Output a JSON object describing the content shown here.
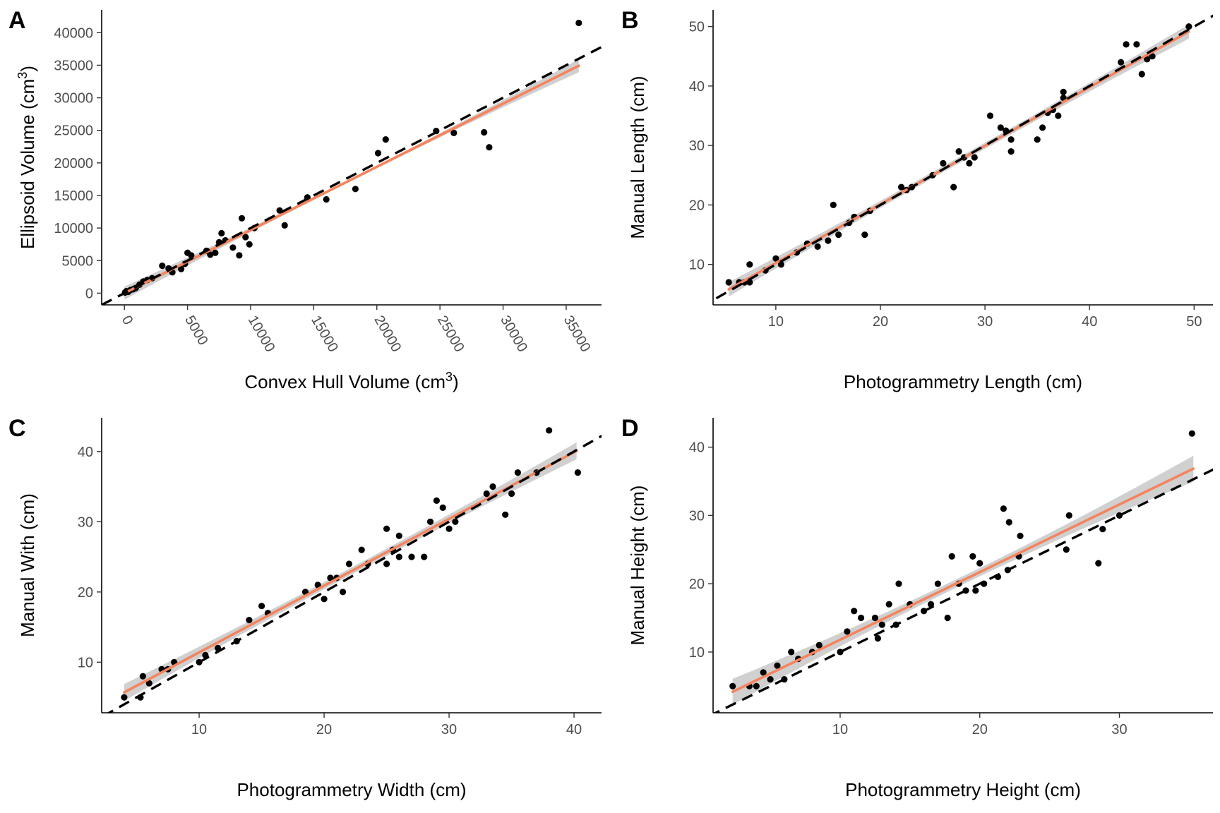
{
  "colors": {
    "fit_line": "#f4845f",
    "ci_band": "#c8c8c8",
    "points": "#000000",
    "identity_line": "#000000"
  },
  "chart_data": [
    {
      "panel": "A",
      "type": "scatter",
      "xlabel": "Convex Hull Volume (cm",
      "xlabel_sup": "3",
      "xlabel_end": ")",
      "ylabel": "Ellipsoid Volume (cm",
      "ylabel_sup": "3",
      "ylabel_end": ")",
      "xlim": [
        -1800,
        37800
      ],
      "ylim": [
        -1800,
        43500
      ],
      "xticks": [
        0,
        5000,
        10000,
        15000,
        20000,
        25000,
        30000,
        35000
      ],
      "yticks": [
        0,
        5000,
        10000,
        15000,
        20000,
        25000,
        30000,
        35000,
        40000
      ],
      "x_tick_rotation": 60,
      "identity_line": true,
      "fit": {
        "slope": 0.97,
        "intercept": 0,
        "x_range": [
          0,
          36000
        ],
        "ci": [
          200,
          1000
        ]
      },
      "points": [
        [
          50,
          100
        ],
        [
          150,
          300
        ],
        [
          300,
          200
        ],
        [
          500,
          500
        ],
        [
          700,
          600
        ],
        [
          900,
          800
        ],
        [
          1200,
          1300
        ],
        [
          1500,
          1800
        ],
        [
          1800,
          2000
        ],
        [
          2200,
          2300
        ],
        [
          3000,
          4200
        ],
        [
          3500,
          3800
        ],
        [
          3800,
          3200
        ],
        [
          4500,
          3700
        ],
        [
          4800,
          4500
        ],
        [
          5000,
          6200
        ],
        [
          5300,
          5800
        ],
        [
          6500,
          6500
        ],
        [
          6800,
          5900
        ],
        [
          7200,
          6200
        ],
        [
          7500,
          7800
        ],
        [
          7700,
          9200
        ],
        [
          8000,
          8100
        ],
        [
          8600,
          7000
        ],
        [
          9100,
          5800
        ],
        [
          9300,
          11500
        ],
        [
          9600,
          8600
        ],
        [
          9900,
          7500
        ],
        [
          10300,
          10000
        ],
        [
          12300,
          12700
        ],
        [
          12700,
          10400
        ],
        [
          14500,
          14700
        ],
        [
          16000,
          14400
        ],
        [
          18300,
          16000
        ],
        [
          20100,
          21500
        ],
        [
          20700,
          23600
        ],
        [
          24700,
          24900
        ],
        [
          26100,
          24600
        ],
        [
          28500,
          24700
        ],
        [
          28900,
          22400
        ],
        [
          36000,
          41500
        ]
      ]
    },
    {
      "panel": "B",
      "type": "scatter",
      "xlabel": "Photogrammetry Length (cm)",
      "ylabel": "Manual Length (cm)",
      "xlim": [
        4,
        51.8
      ],
      "ylim": [
        3.2,
        52.8
      ],
      "xticks": [
        10,
        20,
        30,
        40,
        50
      ],
      "yticks": [
        10,
        20,
        30,
        40,
        50
      ],
      "identity_line": true,
      "fit": {
        "slope": 0.985,
        "intercept": 0.4,
        "x_range": [
          5.5,
          49.5
        ],
        "ci": [
          0.5,
          1.2
        ]
      },
      "points": [
        [
          5.5,
          7
        ],
        [
          6.5,
          7
        ],
        [
          7,
          7
        ],
        [
          7.5,
          10
        ],
        [
          7.5,
          7
        ],
        [
          9,
          9
        ],
        [
          10,
          11
        ],
        [
          10.5,
          10
        ],
        [
          12,
          12
        ],
        [
          13,
          13.5
        ],
        [
          14,
          13
        ],
        [
          15,
          14
        ],
        [
          15.5,
          20
        ],
        [
          16,
          15
        ],
        [
          17,
          17
        ],
        [
          17.5,
          18
        ],
        [
          18.5,
          15
        ],
        [
          19,
          19
        ],
        [
          22,
          23
        ],
        [
          22.5,
          22.5
        ],
        [
          23,
          23
        ],
        [
          25,
          25
        ],
        [
          26,
          27
        ],
        [
          27,
          23
        ],
        [
          27.5,
          29
        ],
        [
          28,
          28
        ],
        [
          28.5,
          27
        ],
        [
          29,
          28
        ],
        [
          30.5,
          35
        ],
        [
          31.5,
          33
        ],
        [
          32,
          32.5
        ],
        [
          32.5,
          31
        ],
        [
          32.5,
          29
        ],
        [
          35,
          31
        ],
        [
          35.5,
          33
        ],
        [
          36,
          35.5
        ],
        [
          36.5,
          36
        ],
        [
          37,
          35
        ],
        [
          37.5,
          38
        ],
        [
          37.5,
          39
        ],
        [
          43,
          44
        ],
        [
          43.5,
          47
        ],
        [
          44.5,
          47
        ],
        [
          45,
          42
        ],
        [
          45.5,
          44.5
        ],
        [
          46,
          45
        ],
        [
          49.5,
          50
        ]
      ]
    },
    {
      "panel": "C",
      "type": "scatter",
      "xlabel": "Photogrammetry Width (cm)",
      "ylabel": "Manual With (cm)",
      "xlim": [
        2.2,
        42.2
      ],
      "ylim": [
        2.8,
        44.8
      ],
      "xticks": [
        10,
        20,
        30,
        40
      ],
      "yticks": [
        10,
        20,
        30,
        40
      ],
      "identity_line": true,
      "fit": {
        "slope": 0.95,
        "intercept": 1.9,
        "x_range": [
          4,
          40.2
        ],
        "ci": [
          0.5,
          1.2
        ]
      },
      "points": [
        [
          4,
          5
        ],
        [
          5.3,
          5
        ],
        [
          5.5,
          8
        ],
        [
          6,
          7
        ],
        [
          7,
          9
        ],
        [
          7.5,
          9
        ],
        [
          8,
          10
        ],
        [
          10,
          10
        ],
        [
          10.5,
          11
        ],
        [
          11.5,
          12
        ],
        [
          13,
          13
        ],
        [
          14,
          16
        ],
        [
          15,
          18
        ],
        [
          15.5,
          17
        ],
        [
          18.5,
          20
        ],
        [
          19.5,
          21
        ],
        [
          20,
          19
        ],
        [
          20.5,
          22
        ],
        [
          21,
          22
        ],
        [
          21.5,
          20
        ],
        [
          22,
          24
        ],
        [
          23,
          26
        ],
        [
          23.5,
          24
        ],
        [
          25,
          24
        ],
        [
          25,
          29
        ],
        [
          25.5,
          26
        ],
        [
          26,
          28
        ],
        [
          26,
          25
        ],
        [
          27,
          25
        ],
        [
          28,
          25
        ],
        [
          28.5,
          30
        ],
        [
          29,
          33
        ],
        [
          29.5,
          32
        ],
        [
          30,
          29
        ],
        [
          30.5,
          30
        ],
        [
          33,
          34
        ],
        [
          33.5,
          35
        ],
        [
          34.5,
          31
        ],
        [
          35,
          34
        ],
        [
          35.5,
          37
        ],
        [
          37,
          37
        ],
        [
          38,
          43
        ],
        [
          40.3,
          37
        ]
      ]
    },
    {
      "panel": "D",
      "type": "scatter",
      "xlabel": "Photogrammetry Height (cm)",
      "ylabel": "Manual Height (cm)",
      "xlim": [
        0.9,
        36.7
      ],
      "ylim": [
        1.1,
        44.3
      ],
      "xticks": [
        10,
        20,
        30
      ],
      "yticks": [
        10,
        20,
        30,
        40
      ],
      "identity_line": true,
      "fit": {
        "slope": 0.99,
        "intercept": 1.9,
        "x_range": [
          2.3,
          35.3
        ],
        "ci": [
          0.6,
          1.9
        ]
      },
      "points": [
        [
          2.3,
          5
        ],
        [
          3.5,
          5
        ],
        [
          4,
          5
        ],
        [
          4.5,
          7
        ],
        [
          5,
          6
        ],
        [
          5.5,
          8
        ],
        [
          6,
          6
        ],
        [
          6.5,
          10
        ],
        [
          7,
          9
        ],
        [
          8,
          10
        ],
        [
          8.5,
          11
        ],
        [
          10,
          10
        ],
        [
          10.5,
          13
        ],
        [
          11,
          16
        ],
        [
          11.5,
          15
        ],
        [
          12.5,
          15
        ],
        [
          12.7,
          12
        ],
        [
          13,
          14
        ],
        [
          13.5,
          17
        ],
        [
          14,
          14
        ],
        [
          14.2,
          20
        ],
        [
          15,
          17
        ],
        [
          16,
          16
        ],
        [
          16.5,
          17
        ],
        [
          17,
          20
        ],
        [
          17.7,
          15
        ],
        [
          18,
          24
        ],
        [
          18.5,
          20
        ],
        [
          19,
          19
        ],
        [
          19.5,
          24
        ],
        [
          19.7,
          19
        ],
        [
          20,
          23
        ],
        [
          20.3,
          20
        ],
        [
          21.3,
          21
        ],
        [
          21.7,
          31
        ],
        [
          22,
          22
        ],
        [
          22.1,
          29
        ],
        [
          22.8,
          24
        ],
        [
          22.9,
          27
        ],
        [
          26.2,
          25
        ],
        [
          26.4,
          30
        ],
        [
          28.5,
          23
        ],
        [
          28.8,
          28
        ],
        [
          30,
          30
        ],
        [
          35.2,
          42
        ]
      ]
    }
  ]
}
